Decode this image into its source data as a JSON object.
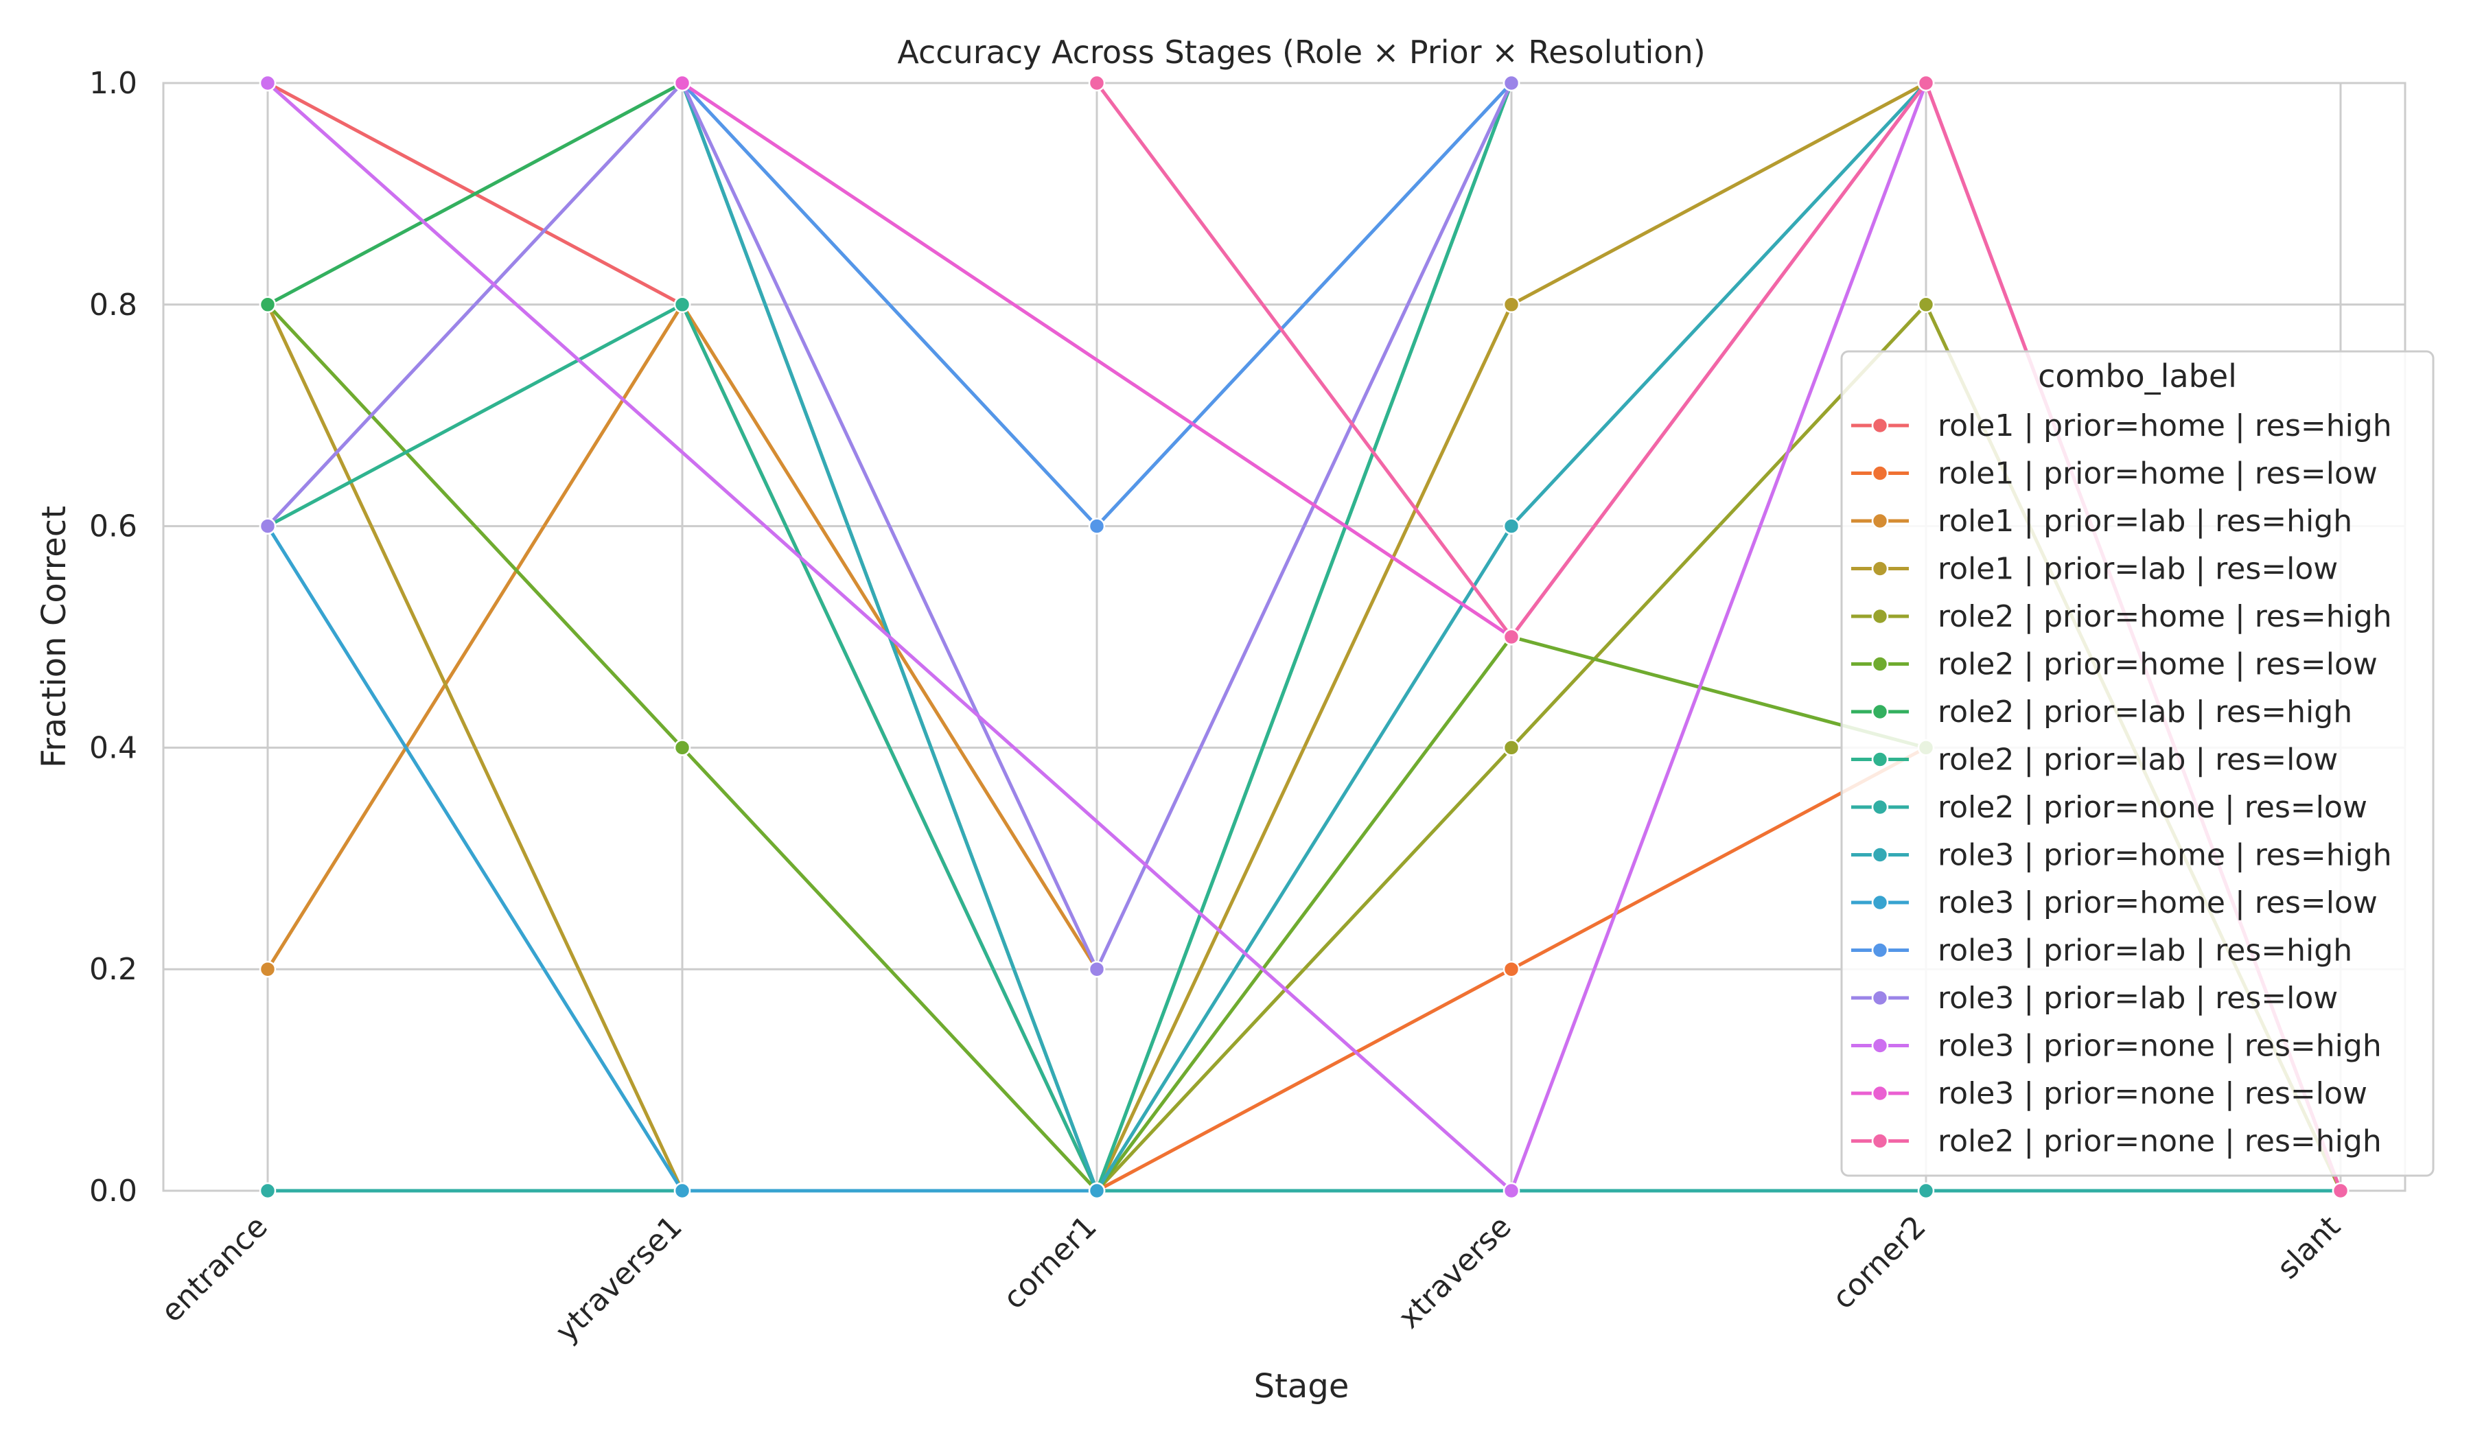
{
  "chart_data": {
    "type": "line",
    "title": "Accuracy Across Stages (Role × Prior × Resolution)",
    "xlabel": "Stage",
    "ylabel": "Fraction Correct",
    "categories": [
      "entrance",
      "ytraverse1",
      "corner1",
      "xtraverse",
      "corner2",
      "slant"
    ],
    "ylim": [
      0,
      1
    ],
    "yticks": [
      "0.0",
      "0.2",
      "0.4",
      "0.6",
      "0.8",
      "1.0"
    ],
    "grid": true,
    "legend": {
      "title": "combo_label",
      "placement": "right"
    },
    "series": [
      {
        "name": "role1 | prior=home | res=high",
        "color": "#f0656a",
        "values": [
          1.0,
          0.8,
          0.0,
          null,
          null,
          null
        ]
      },
      {
        "name": "role1 | prior=home | res=low",
        "color": "#f07132",
        "values": [
          null,
          null,
          0.0,
          0.2,
          0.4,
          null
        ]
      },
      {
        "name": "role1 | prior=lab | res=high",
        "color": "#d58c32",
        "values": [
          0.2,
          0.8,
          0.2,
          null,
          null,
          null
        ]
      },
      {
        "name": "role1 | prior=lab | res=low",
        "color": "#b59b2f",
        "values": [
          0.8,
          0.0,
          0.0,
          0.8,
          1.0,
          null
        ]
      },
      {
        "name": "role2 | prior=home | res=high",
        "color": "#98a32c",
        "values": [
          null,
          null,
          0.0,
          0.4,
          0.8,
          0.0
        ]
      },
      {
        "name": "role2 | prior=home | res=low",
        "color": "#6fab2f",
        "values": [
          0.8,
          0.4,
          0.0,
          0.5,
          0.4,
          null
        ]
      },
      {
        "name": "role2 | prior=lab | res=high",
        "color": "#33b05f",
        "values": [
          0.8,
          1.0,
          0.0,
          1.0,
          null,
          null
        ]
      },
      {
        "name": "role2 | prior=lab | res=low",
        "color": "#2fb38f",
        "values": [
          0.6,
          0.8,
          0.0,
          1.0,
          null,
          null
        ]
      },
      {
        "name": "role2 | prior=none | res=low",
        "color": "#30aea3",
        "values": [
          0.0,
          0.0,
          0.0,
          0.0,
          0.0,
          0.0
        ]
      },
      {
        "name": "role3 | prior=home | res=high",
        "color": "#34a9b5",
        "values": [
          null,
          1.0,
          0.0,
          0.6,
          1.0,
          null
        ]
      },
      {
        "name": "role3 | prior=home | res=low",
        "color": "#37a3d0",
        "values": [
          0.6,
          0.0,
          0.0,
          null,
          null,
          null
        ]
      },
      {
        "name": "role3 | prior=lab | res=high",
        "color": "#5496e8",
        "values": [
          null,
          1.0,
          0.6,
          1.0,
          null,
          null
        ]
      },
      {
        "name": "role3 | prior=lab | res=low",
        "color": "#9b84e8",
        "values": [
          0.6,
          1.0,
          0.2,
          1.0,
          null,
          null
        ]
      },
      {
        "name": "role3 | prior=none | res=high",
        "color": "#cd6ff0",
        "values": [
          1.0,
          null,
          null,
          0.0,
          1.0,
          null
        ]
      },
      {
        "name": "role3 | prior=none | res=low",
        "color": "#ea5fd2",
        "values": [
          null,
          1.0,
          null,
          0.5,
          1.0,
          0.0
        ]
      },
      {
        "name": "role2 | prior=none | res=high",
        "color": "#f266a6",
        "values": [
          null,
          null,
          1.0,
          0.5,
          1.0,
          0.0
        ]
      }
    ]
  }
}
